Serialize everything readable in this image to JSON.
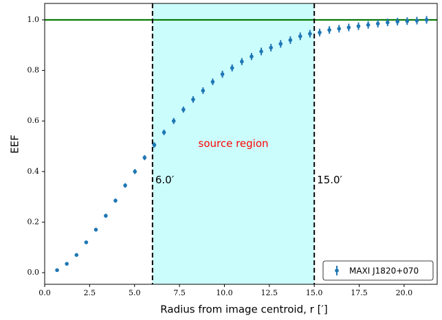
{
  "chart_data": {
    "type": "errorbar-scatter",
    "xlabel": "Radius from image centroid, r [′]",
    "ylabel": "EEF",
    "xlim": [
      0,
      21.84
    ],
    "ylim": [
      -0.046,
      1.065
    ],
    "xticks": [
      {
        "value": 0,
        "label": "0.0"
      },
      2.5,
      {
        "value": 5,
        "label": "5.0"
      },
      7.5,
      {
        "value": 10,
        "label": "10.0"
      },
      12.5,
      {
        "value": 15,
        "label": "15.0"
      },
      17.5,
      {
        "value": 20,
        "label": "20.0"
      }
    ],
    "yticks": [
      {
        "value": 0,
        "label": "0.0"
      },
      0.2,
      0.4,
      0.6,
      0.8,
      {
        "value": 1,
        "label": "1.0"
      }
    ],
    "series": [
      {
        "name": "MAXI J1820+070",
        "color": "#1f77b4",
        "x": [
          0.69,
          1.23,
          1.77,
          2.31,
          2.85,
          3.4,
          3.94,
          4.48,
          5.02,
          5.56,
          6.1,
          6.64,
          7.18,
          7.72,
          8.26,
          8.81,
          9.35,
          9.89,
          10.43,
          10.97,
          11.51,
          12.05,
          12.59,
          13.13,
          13.67,
          14.22,
          14.76,
          15.3,
          15.84,
          16.38,
          16.92,
          17.46,
          18.0,
          18.54,
          19.08,
          19.63,
          20.17,
          20.71,
          21.25
        ],
        "values": [
          0.01,
          0.035,
          0.07,
          0.12,
          0.17,
          0.225,
          0.285,
          0.345,
          0.4,
          0.455,
          0.505,
          0.555,
          0.6,
          0.645,
          0.685,
          0.72,
          0.755,
          0.785,
          0.81,
          0.835,
          0.855,
          0.875,
          0.89,
          0.905,
          0.92,
          0.935,
          0.945,
          0.95,
          0.96,
          0.965,
          0.97,
          0.975,
          0.98,
          0.985,
          0.99,
          0.993,
          0.995,
          0.997,
          1.0
        ],
        "errors": [
          0.004,
          0.005,
          0.006,
          0.006,
          0.007,
          0.008,
          0.008,
          0.009,
          0.01,
          0.01,
          0.011,
          0.011,
          0.012,
          0.012,
          0.013,
          0.013,
          0.013,
          0.014,
          0.014,
          0.014,
          0.014,
          0.015,
          0.015,
          0.015,
          0.015,
          0.015,
          0.015,
          0.015,
          0.015,
          0.015,
          0.015,
          0.015,
          0.015,
          0.015,
          0.015,
          0.015,
          0.015,
          0.015,
          0.015
        ]
      }
    ],
    "region": {
      "from": 6,
      "to": 15,
      "color": "#ccfdfd",
      "label": "source region",
      "label_color": "#ff0000"
    },
    "vlines": [
      {
        "value": 6,
        "label": "6.0′"
      },
      {
        "value": 15,
        "label": "15.0′"
      }
    ],
    "hline": {
      "value": 1,
      "color": "#007700"
    },
    "legend": "lower right"
  }
}
